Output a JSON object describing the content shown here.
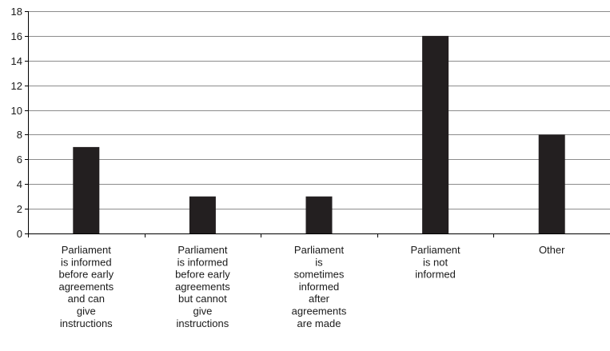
{
  "chart_data": {
    "type": "bar",
    "title": "",
    "xlabel": "",
    "ylabel": "",
    "categories": [
      "Parliament is informed before early agreements and can give instructions",
      "Parliament is informed before early agreements but cannot give instructions",
      "Parliament is sometimes informed after agreements are made",
      "Parliament is not informed",
      "Other"
    ],
    "category_lines": [
      [
        "Parliament",
        "is informed",
        "before early",
        "agreements",
        "and can",
        "give",
        "instructions"
      ],
      [
        "Parliament",
        "is informed",
        "before early",
        "agreements",
        "but cannot",
        "give",
        "instructions"
      ],
      [
        "Parliament",
        "is",
        "sometimes",
        "informed",
        "after",
        "agreements",
        "are made"
      ],
      [
        "Parliament",
        "is not",
        "informed"
      ],
      [
        "Other"
      ]
    ],
    "values": [
      7,
      3,
      3,
      16,
      8
    ],
    "ylim": [
      0,
      18
    ],
    "yticks": [
      0,
      2,
      4,
      6,
      8,
      10,
      12,
      14,
      16,
      18
    ],
    "grid": true,
    "legend": "none",
    "bar_color": "#231f20",
    "grid_color": "#8c8c8c",
    "axis_color": "#000000"
  }
}
